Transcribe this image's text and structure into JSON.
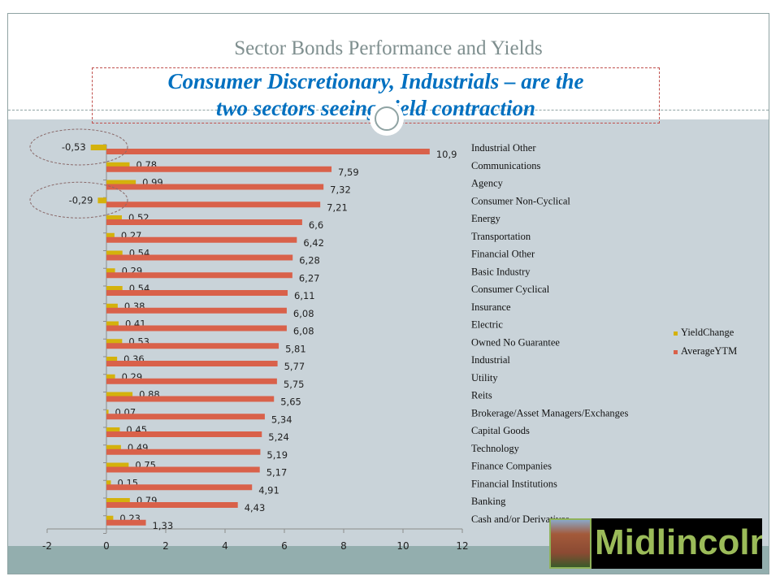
{
  "slide": {
    "title": "Sector Bonds Performance and Yields",
    "callout_line1": "Consumer Discretionary, Industrials – are the",
    "callout_line2": "two sectors seeing yield contraction",
    "logo_text": "Midlincoln"
  },
  "chart_data": {
    "type": "bar",
    "orientation": "horizontal",
    "categories": [
      "Industrial Other",
      "Communications",
      "Agency",
      "Consumer Non-Cyclical",
      "Energy",
      "Transportation",
      "Financial Other",
      "Basic Industry",
      "Consumer Cyclical",
      "Insurance",
      "Electric",
      "Owned No Guarantee",
      "Industrial",
      "Utility",
      "Reits",
      "Brokerage/Asset Managers/Exchanges",
      "Capital Goods",
      "Technology",
      "Finance Companies",
      "Financial Institutions",
      "Banking",
      "Cash and/or Derivatives"
    ],
    "series": [
      {
        "name": "YieldChange",
        "color": "#d4b20c",
        "values": [
          -0.53,
          0.78,
          0.99,
          -0.29,
          0.52,
          0.27,
          0.54,
          0.29,
          0.54,
          0.38,
          0.41,
          0.53,
          0.36,
          0.29,
          0.88,
          0.07,
          0.45,
          0.49,
          0.75,
          0.15,
          0.79,
          0.23
        ],
        "labels": [
          "-0,53",
          "0,78",
          "0,99",
          "-0,29",
          "0,52",
          "0,27",
          "0,54",
          "0,29",
          "0,54",
          "0,38",
          "0,41",
          "0,53",
          "0,36",
          "0,29",
          "0,88",
          "0,07",
          "0,45",
          "0,49",
          "0,75",
          "0,15",
          "0,79",
          "0,23"
        ]
      },
      {
        "name": "AverageYTM",
        "color": "#d9614a",
        "values": [
          10.9,
          7.59,
          7.32,
          7.21,
          6.6,
          6.42,
          6.28,
          6.27,
          6.11,
          6.08,
          6.08,
          5.81,
          5.77,
          5.75,
          5.65,
          5.34,
          5.24,
          5.19,
          5.17,
          4.91,
          4.43,
          1.33
        ],
        "labels": [
          "10,9",
          "7,59",
          "7,32",
          "7,21",
          "6,6",
          "6,42",
          "6,28",
          "6,27",
          "6,11",
          "6,08",
          "6,08",
          "5,81",
          "5,77",
          "5,75",
          "5,65",
          "5,34",
          "5,24",
          "5,19",
          "5,17",
          "4,91",
          "4,43",
          "1,33"
        ]
      }
    ],
    "xlim": [
      -2,
      12
    ],
    "xticks": [
      "-2",
      "0",
      "2",
      "4",
      "6",
      "8",
      "10",
      "12"
    ],
    "legend": "right",
    "grid": false,
    "highlighted": [
      "Industrial Other",
      "Consumer Non-Cyclical"
    ]
  }
}
